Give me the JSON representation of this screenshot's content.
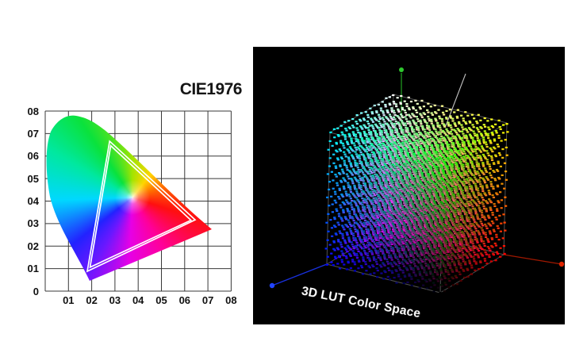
{
  "chart_data": [
    {
      "type": "area",
      "variant": "chromaticity-diagram",
      "title": "CIE1976",
      "xlim": [
        0,
        0.8
      ],
      "ylim": [
        0,
        0.8
      ],
      "grid": true,
      "x_tick_labels": [
        "01",
        "02",
        "03",
        "04",
        "05",
        "06",
        "07",
        "08"
      ],
      "y_tick_labels": [
        "08",
        "07",
        "06",
        "05",
        "04",
        "03",
        "02",
        "01",
        "0"
      ],
      "white_point": [
        0.375,
        0.416
      ],
      "spectral_locus_hue_order_clockwise_from_up": [
        "yellow-green",
        "yellow",
        "orange",
        "red",
        "pink",
        "magenta",
        "violet",
        "blue",
        "cyan",
        "green"
      ],
      "gamut_triangles": {
        "outer": [
          [
            0.277,
            0.666
          ],
          [
            0.181,
            0.088
          ],
          [
            0.645,
            0.317
          ]
        ],
        "inner": [
          [
            0.282,
            0.646
          ],
          [
            0.193,
            0.106
          ],
          [
            0.627,
            0.315
          ]
        ]
      },
      "triangle_color": "#ffffff",
      "grid_color": "#383838"
    },
    {
      "type": "scatter",
      "variant": "3d-lut-rgb-cube",
      "title": "3D LUT Color Space",
      "background": "#000000",
      "lattice_size": 17,
      "point_rule": "dot color = rgb(r,g,b) at lattice position (r,g,b)",
      "axes": [
        {
          "name": "red",
          "color": "#e02500",
          "line_color": "#a01800",
          "direction": "right"
        },
        {
          "name": "green",
          "color": "#2ec82e",
          "line_color": "#1e8c1e",
          "direction": "up"
        },
        {
          "name": "blue",
          "color": "#2244ff",
          "line_color": "#1830dd",
          "direction": "lower-left"
        },
        {
          "name": "neutral-white",
          "color": "#c0c0c0",
          "line_color": "#c0c0c0",
          "direction": "upper-right"
        }
      ],
      "wireframe_color": "rgba(150,150,150,0.55)"
    }
  ]
}
